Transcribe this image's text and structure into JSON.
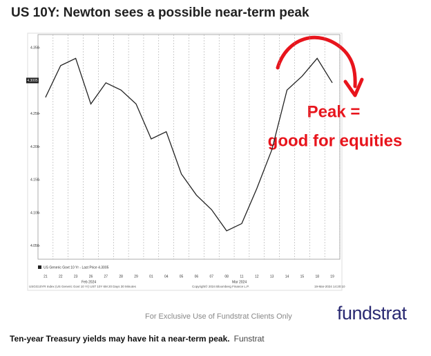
{
  "chart_data": {
    "type": "line",
    "title": "US 10Y: Newton sees a possible near-term peak",
    "categories": [
      "21",
      "22",
      "23",
      "26",
      "27",
      "28",
      "29",
      "01",
      "04",
      "05",
      "06",
      "07",
      "08",
      "11",
      "12",
      "13",
      "14",
      "15",
      "18",
      "19"
    ],
    "series": [
      {
        "name": "US Generic Govt 10 Yr - Last Price 4.3005",
        "color": "#222222",
        "values": [
          4.275,
          4.323,
          4.334,
          4.265,
          4.297,
          4.286,
          4.265,
          4.212,
          4.223,
          4.159,
          4.127,
          4.105,
          4.073,
          4.084,
          4.137,
          4.196,
          4.286,
          4.307,
          4.334,
          4.297
        ]
      }
    ],
    "last_price": 4.3005,
    "ylim": [
      4.03,
      4.37
    ],
    "yticks": [
      {
        "value": 4.05,
        "label": "4.050"
      },
      {
        "value": 4.1,
        "label": "4.100"
      },
      {
        "value": 4.15,
        "label": "4.150"
      },
      {
        "value": 4.2,
        "label": "4.200"
      },
      {
        "value": 4.25,
        "label": "4.250"
      },
      {
        "value": 4.35,
        "label": "4.350"
      }
    ],
    "grid": true,
    "month_labels": [
      "Feb 2024",
      "Mar 2024"
    ],
    "annotation": [
      "Peak =",
      "good for equities"
    ],
    "footer": [
      "USGG10YR Index (US Generic Govt 10 Yr) UST 10Y 6M 20 Days 30 Minutes",
      "Copyright© 2024 Bloomberg Finance L.P.",
      "19-Mar-2024 14:20:10"
    ]
  },
  "notice": "For Exclusive Use of Fundstrat Clients Only",
  "logo": "fundstrat",
  "caption": {
    "text": "Ten-year Treasury yields may have hit a near-term peak.",
    "source": "Funstrat"
  }
}
